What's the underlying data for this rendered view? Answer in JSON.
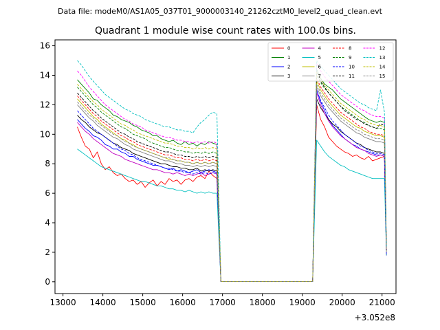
{
  "header": {
    "data_file": "Data file: modeM0/AS1A05_037T01_9000003140_21262cztM0_level2_quad_clean.evt"
  },
  "chart_data": {
    "type": "line",
    "title": "Quadrant 1 module wise count rates with 100.0s bins.",
    "xlabel": "",
    "ylabel": "",
    "x_offset_label": "+3.052e8",
    "xlim": [
      12800,
      21350
    ],
    "ylim": [
      -0.8,
      16.4
    ],
    "xticks": [
      13000,
      14000,
      15000,
      16000,
      17000,
      18000,
      19000,
      20000,
      21000
    ],
    "xtick_labels": [
      "13000",
      "14000",
      "15000",
      "16000",
      "17000",
      "18000",
      "19000",
      "20000",
      "21000"
    ],
    "yticks": [
      0,
      2,
      4,
      6,
      8,
      10,
      12,
      14,
      16
    ],
    "ytick_labels": [
      "0",
      "2",
      "4",
      "6",
      "8",
      "10",
      "12",
      "14",
      "16"
    ],
    "grid": false,
    "legend": {
      "placement": "top-right",
      "columns": 4
    },
    "segments": {
      "seg1": {
        "start": 13360,
        "step": 100,
        "count": 36
      },
      "gap": {
        "start": 16960,
        "end": 19260,
        "value": 0.02
      },
      "seg2": {
        "start": 19260,
        "step": 100,
        "count": 18
      }
    },
    "series": [
      {
        "name": "0",
        "color": "#ff0000",
        "dash": "solid",
        "seg1": [
          10.5,
          9.8,
          9.2,
          9.0,
          8.4,
          8.8,
          8.0,
          7.6,
          7.8,
          7.4,
          7.2,
          7.3,
          7.0,
          6.8,
          6.9,
          6.6,
          6.8,
          6.4,
          6.7,
          6.9,
          6.5,
          6.8,
          6.6,
          7.0,
          6.8,
          6.9,
          6.6,
          6.9,
          7.0,
          6.8,
          7.1,
          7.2,
          7.0,
          7.5,
          7.2,
          7.0
        ],
        "seg2": [
          12.0,
          11.0,
          10.5,
          9.8,
          9.5,
          9.2,
          9.0,
          8.8,
          8.7,
          8.5,
          8.6,
          8.4,
          8.3,
          8.5,
          8.2,
          8.3,
          8.4,
          8.5
        ]
      },
      {
        "name": "1",
        "color": "#008000",
        "dash": "solid",
        "seg1": [
          13.7,
          13.4,
          13.1,
          12.8,
          12.4,
          12.3,
          12.0,
          11.8,
          11.6,
          11.3,
          11.2,
          11.0,
          10.9,
          10.8,
          10.6,
          10.5,
          10.3,
          10.2,
          10.1,
          9.9,
          9.9,
          9.7,
          9.6,
          9.5,
          9.6,
          9.4,
          9.3,
          9.5,
          9.3,
          9.4,
          9.2,
          9.4,
          9.3,
          9.5,
          9.4,
          9.3
        ],
        "seg2": [
          14.4,
          13.8,
          13.4,
          13.2,
          13.0,
          12.7,
          12.4,
          12.2,
          12.0,
          11.8,
          11.6,
          11.4,
          11.2,
          11.0,
          10.9,
          10.8,
          10.9,
          10.8
        ]
      },
      {
        "name": "2",
        "color": "#0000ff",
        "dash": "solid",
        "seg1": [
          11.0,
          10.7,
          10.4,
          10.2,
          9.9,
          9.8,
          9.6,
          9.3,
          9.2,
          9.0,
          9.0,
          8.8,
          8.7,
          8.5,
          8.5,
          8.3,
          8.2,
          8.1,
          8.0,
          7.9,
          7.9,
          7.8,
          7.7,
          7.6,
          7.7,
          7.5,
          7.6,
          7.5,
          7.4,
          7.5,
          7.6,
          7.4,
          7.5,
          7.6,
          7.5,
          7.4
        ],
        "seg2": [
          13.0,
          12.2,
          11.6,
          11.0,
          10.6,
          10.3,
          10.0,
          9.7,
          9.5,
          9.3,
          9.2,
          9.0,
          8.9,
          8.8,
          8.7,
          8.6,
          8.6,
          8.5
        ]
      },
      {
        "name": "3",
        "color": "#000000",
        "dash": "solid",
        "seg1": [
          11.3,
          11.0,
          10.8,
          10.5,
          10.3,
          10.1,
          10.0,
          9.8,
          9.6,
          9.4,
          9.3,
          9.1,
          9.0,
          8.9,
          8.7,
          8.6,
          8.5,
          8.4,
          8.3,
          8.2,
          8.1,
          8.0,
          8.0,
          7.9,
          7.8,
          7.8,
          7.7,
          7.7,
          7.6,
          7.6,
          7.7,
          7.5,
          7.6,
          7.5,
          7.6,
          7.5
        ],
        "seg2": [
          12.4,
          11.8,
          11.4,
          11.0,
          10.7,
          10.5,
          10.2,
          10.0,
          9.8,
          9.6,
          9.4,
          9.3,
          9.1,
          9.0,
          8.9,
          8.8,
          8.8,
          8.7
        ]
      },
      {
        "name": "4",
        "color": "#c000c0",
        "dash": "solid",
        "seg1": [
          10.8,
          10.5,
          10.2,
          10.0,
          9.7,
          9.5,
          9.3,
          9.1,
          8.9,
          8.7,
          8.6,
          8.5,
          8.3,
          8.2,
          8.1,
          8.0,
          7.9,
          7.8,
          7.7,
          7.6,
          7.6,
          7.5,
          7.4,
          7.4,
          7.3,
          7.4,
          7.3,
          7.2,
          7.3,
          7.2,
          7.3,
          7.4,
          7.2,
          7.3,
          7.4,
          7.3
        ],
        "seg2": [
          12.8,
          12.0,
          11.4,
          10.9,
          10.5,
          10.2,
          9.9,
          9.7,
          9.5,
          9.3,
          9.1,
          9.0,
          8.9,
          8.7,
          8.6,
          8.5,
          8.6,
          8.5
        ]
      },
      {
        "name": "5",
        "color": "#00bfbf",
        "dash": "solid",
        "seg1": [
          9.0,
          8.8,
          8.6,
          8.4,
          8.2,
          8.0,
          7.8,
          7.7,
          7.6,
          7.5,
          7.4,
          7.3,
          7.2,
          7.1,
          7.0,
          6.9,
          6.8,
          6.8,
          6.7,
          6.6,
          6.5,
          6.5,
          6.4,
          6.3,
          6.3,
          6.2,
          6.2,
          6.1,
          6.2,
          6.1,
          6.0,
          6.1,
          6.0,
          6.1,
          6.0,
          6.0
        ],
        "seg2": [
          9.6,
          9.2,
          8.8,
          8.5,
          8.3,
          8.1,
          7.9,
          7.8,
          7.6,
          7.5,
          7.4,
          7.3,
          7.2,
          7.1,
          7.0,
          7.0,
          7.0,
          7.0
        ]
      },
      {
        "name": "6",
        "color": "#bfbf00",
        "dash": "solid",
        "seg1": [
          12.4,
          12.1,
          11.8,
          11.5,
          11.2,
          11.0,
          10.7,
          10.5,
          10.3,
          10.1,
          9.9,
          9.7,
          9.6,
          9.4,
          9.3,
          9.1,
          9.0,
          8.9,
          8.8,
          8.7,
          8.6,
          8.5,
          8.4,
          8.3,
          8.3,
          8.2,
          8.2,
          8.1,
          8.1,
          8.0,
          8.1,
          8.0,
          8.1,
          8.0,
          8.1,
          8.0
        ],
        "seg2": [
          13.6,
          13.0,
          12.6,
          12.2,
          11.9,
          11.6,
          11.3,
          11.1,
          10.9,
          10.7,
          10.5,
          10.4,
          10.2,
          10.1,
          10.0,
          9.9,
          9.9,
          9.8
        ]
      },
      {
        "name": "7",
        "color": "#808080",
        "dash": "solid",
        "seg1": [
          12.0,
          11.7,
          11.4,
          11.1,
          10.9,
          10.6,
          10.4,
          10.2,
          10.0,
          9.8,
          9.7,
          9.5,
          9.3,
          9.2,
          9.0,
          8.9,
          8.8,
          8.7,
          8.6,
          8.5,
          8.4,
          8.3,
          8.2,
          8.2,
          8.1,
          8.0,
          8.0,
          7.9,
          7.9,
          7.8,
          7.9,
          7.8,
          7.9,
          7.8,
          7.9,
          7.8
        ],
        "seg2": [
          13.2,
          12.6,
          12.2,
          11.8,
          11.5,
          11.2,
          10.9,
          10.7,
          10.5,
          10.3,
          10.1,
          10.0,
          9.8,
          9.7,
          9.6,
          9.5,
          9.5,
          9.4
        ]
      },
      {
        "name": "8",
        "color": "#ff0000",
        "dash": "dashed",
        "seg1": [
          12.6,
          12.3,
          12.0,
          11.7,
          11.4,
          11.2,
          10.9,
          10.7,
          10.5,
          10.3,
          10.1,
          9.9,
          9.8,
          9.6,
          9.5,
          9.3,
          9.2,
          9.1,
          9.0,
          8.9,
          8.8,
          8.7,
          8.6,
          8.6,
          8.5,
          8.4,
          8.4,
          8.3,
          8.3,
          8.2,
          8.3,
          8.2,
          8.3,
          8.2,
          8.3,
          8.2
        ],
        "seg2": [
          13.8,
          13.2,
          12.8,
          12.4,
          12.1,
          11.8,
          11.5,
          11.3,
          11.1,
          10.9,
          10.7,
          10.5,
          10.4,
          10.2,
          10.1,
          10.0,
          10.0,
          9.9
        ]
      },
      {
        "name": "9",
        "color": "#008000",
        "dash": "dashed",
        "seg1": [
          13.2,
          12.9,
          12.6,
          12.3,
          12.0,
          11.8,
          11.5,
          11.3,
          11.1,
          10.9,
          10.7,
          10.5,
          10.4,
          10.2,
          10.0,
          9.9,
          9.8,
          9.7,
          9.5,
          9.4,
          9.3,
          9.2,
          9.1,
          9.1,
          9.0,
          8.9,
          8.9,
          8.8,
          8.8,
          8.7,
          8.8,
          8.7,
          8.8,
          8.7,
          8.8,
          8.7
        ],
        "seg2": [
          14.0,
          13.5,
          13.1,
          12.8,
          12.5,
          12.2,
          11.9,
          11.7,
          11.5,
          11.3,
          11.1,
          10.9,
          10.8,
          10.6,
          10.5,
          10.4,
          10.4,
          10.3
        ]
      },
      {
        "name": "10",
        "color": "#0000ff",
        "dash": "dashed",
        "seg1": [
          11.6,
          11.3,
          11.0,
          10.7,
          10.4,
          10.2,
          10.0,
          9.8,
          9.6,
          9.4,
          9.2,
          9.0,
          8.9,
          8.7,
          8.6,
          8.4,
          8.3,
          8.2,
          8.1,
          8.0,
          7.9,
          7.8,
          7.7,
          7.7,
          7.6,
          7.5,
          7.5,
          7.4,
          7.4,
          7.3,
          7.4,
          7.3,
          7.4,
          7.3,
          7.4,
          7.3
        ],
        "seg2": [
          13.0,
          12.3,
          11.8,
          11.3,
          10.9,
          10.6,
          10.3,
          10.0,
          9.8,
          9.6,
          9.4,
          9.2,
          9.1,
          8.9,
          8.8,
          8.7,
          8.7,
          8.6
        ]
      },
      {
        "name": "11",
        "color": "#000000",
        "dash": "dashed",
        "seg1": [
          12.8,
          12.5,
          12.2,
          11.9,
          11.6,
          11.4,
          11.1,
          10.9,
          10.7,
          10.5,
          10.3,
          10.1,
          10.0,
          9.8,
          9.7,
          9.5,
          9.4,
          9.3,
          9.2,
          9.1,
          9.0,
          8.9,
          8.8,
          8.8,
          8.7,
          8.6,
          8.6,
          8.5,
          8.5,
          8.4,
          8.5,
          8.4,
          8.5,
          8.4,
          8.5,
          8.4
        ],
        "seg2": [
          14.2,
          13.6,
          13.2,
          12.8,
          12.5,
          12.2,
          11.9,
          11.6,
          11.4,
          11.2,
          11.0,
          10.9,
          10.7,
          10.6,
          10.5,
          10.4,
          10.7,
          10.6
        ]
      },
      {
        "name": "12",
        "color": "#ff00ff",
        "dash": "dashed",
        "seg1": [
          14.3,
          14.0,
          13.6,
          13.2,
          12.9,
          12.6,
          12.3,
          12.0,
          11.8,
          11.6,
          11.4,
          11.2,
          11.0,
          10.9,
          10.7,
          10.6,
          10.5,
          10.3,
          10.2,
          10.1,
          10.0,
          9.9,
          9.8,
          9.8,
          9.7,
          9.6,
          9.6,
          9.5,
          9.5,
          9.4,
          9.5,
          9.4,
          9.5,
          9.4,
          9.5,
          9.4
        ],
        "seg2": [
          14.8,
          14.3,
          13.9,
          13.6,
          13.3,
          13.0,
          12.7,
          12.5,
          12.3,
          12.1,
          11.9,
          11.7,
          11.6,
          11.4,
          11.3,
          11.2,
          11.2,
          11.1
        ]
      },
      {
        "name": "13",
        "color": "#00bfbf",
        "dash": "dashed",
        "seg1": [
          15.0,
          14.7,
          14.3,
          13.9,
          13.6,
          13.3,
          13.0,
          12.7,
          12.5,
          12.3,
          12.1,
          11.9,
          11.7,
          11.6,
          11.4,
          11.3,
          11.2,
          11.0,
          10.9,
          10.8,
          10.7,
          10.6,
          10.5,
          10.5,
          10.4,
          10.3,
          10.3,
          10.2,
          10.2,
          10.1,
          10.5,
          10.8,
          11.0,
          11.3,
          11.5,
          11.4
        ],
        "seg2": [
          15.0,
          14.6,
          14.3,
          14.0,
          13.7,
          13.4,
          13.1,
          12.9,
          12.7,
          12.5,
          12.3,
          12.1,
          12.0,
          11.8,
          11.7,
          11.6,
          13.0,
          11.5
        ]
      },
      {
        "name": "14",
        "color": "#bfbf00",
        "dash": "dashed",
        "seg1": [
          13.4,
          13.1,
          12.8,
          12.5,
          12.2,
          12.0,
          11.7,
          11.5,
          11.3,
          11.1,
          10.9,
          10.7,
          10.6,
          10.4,
          10.3,
          10.1,
          10.0,
          9.9,
          9.8,
          9.7,
          9.6,
          9.5,
          9.4,
          9.4,
          9.3,
          9.2,
          9.2,
          9.1,
          9.1,
          9.0,
          9.1,
          9.0,
          9.1,
          9.0,
          9.1,
          9.0
        ],
        "seg2": [
          14.2,
          13.7,
          13.3,
          13.0,
          12.7,
          12.4,
          12.1,
          11.9,
          11.7,
          11.5,
          11.3,
          11.1,
          11.0,
          10.8,
          10.7,
          10.6,
          10.6,
          10.5
        ]
      },
      {
        "name": "15",
        "color": "#808080",
        "dash": "dashed",
        "seg1": [
          12.2,
          11.9,
          11.6,
          11.3,
          11.1,
          10.8,
          10.6,
          10.4,
          10.2,
          10.0,
          9.9,
          9.7,
          9.5,
          9.4,
          9.2,
          9.1,
          9.0,
          8.9,
          8.8,
          8.7,
          8.6,
          8.5,
          8.4,
          8.4,
          8.3,
          8.2,
          8.2,
          8.1,
          8.1,
          8.0,
          8.1,
          8.0,
          8.1,
          8.0,
          8.1,
          8.0
        ],
        "seg2": [
          13.4,
          12.8,
          12.4,
          12.0,
          11.7,
          11.4,
          11.1,
          10.9,
          10.7,
          10.5,
          10.3,
          10.2,
          10.0,
          9.9,
          9.8,
          9.7,
          9.7,
          9.6
        ]
      }
    ]
  }
}
